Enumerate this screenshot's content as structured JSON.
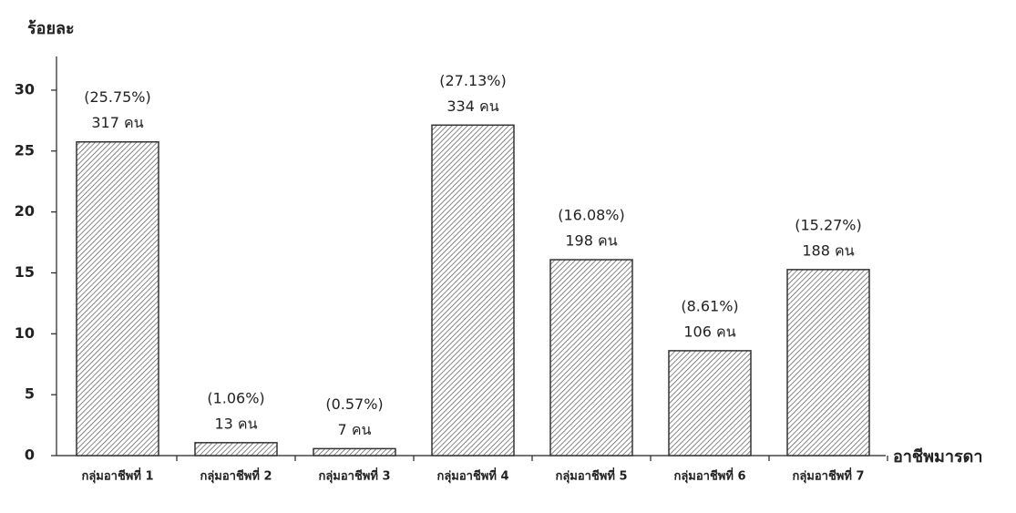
{
  "chart_data": {
    "type": "bar",
    "y_label": "ร้อยละ",
    "x_label": "อาชีพมารดา",
    "categories": [
      "กลุ่มอาชีพที่ 1",
      "กลุ่มอาชีพที่ 2",
      "กลุ่มอาชีพที่ 3",
      "กลุ่มอาชีพที่ 4",
      "กลุ่มอาชีพที่ 5",
      "กลุ่มอาชีพที่ 6",
      "กลุ่มอาชีพที่ 7"
    ],
    "values": [
      25.75,
      1.06,
      0.57,
      27.13,
      16.08,
      8.61,
      15.27
    ],
    "value_labels": [
      "(25.75%)",
      "(1.06%)",
      "(0.57%)",
      "(27.13%)",
      "(16.08%)",
      "(8.61%)",
      "(15.27%)"
    ],
    "count_labels": [
      "317 คน",
      "13 คน",
      "7 คน",
      "334 คน",
      "198 คน",
      "106 คน",
      "188 คน"
    ],
    "color": "#333333",
    "ylim": [
      0,
      32.5
    ],
    "yticks": [
      0,
      5,
      10,
      15,
      20,
      25,
      30
    ],
    "grid": false
  }
}
